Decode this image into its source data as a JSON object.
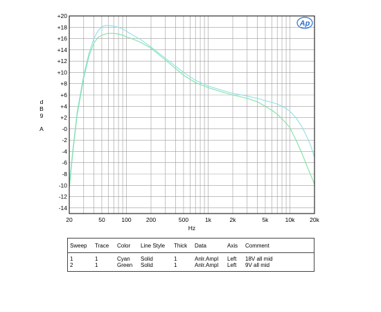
{
  "chart_data": {
    "type": "line",
    "xlabel": "Hz",
    "ylabel_lines": [
      "d",
      "B",
      "9",
      "A"
    ],
    "x_scale": "log",
    "xlim": [
      20,
      20000
    ],
    "ylim": [
      -15,
      20
    ],
    "grid": true,
    "x_ticks": [
      {
        "v": 20,
        "label": "20"
      },
      {
        "v": 50,
        "label": "50"
      },
      {
        "v": 100,
        "label": "100"
      },
      {
        "v": 200,
        "label": "200"
      },
      {
        "v": 500,
        "label": "500"
      },
      {
        "v": 1000,
        "label": "1k"
      },
      {
        "v": 2000,
        "label": "2k"
      },
      {
        "v": 5000,
        "label": "5k"
      },
      {
        "v": 10000,
        "label": "10k"
      },
      {
        "v": 20000,
        "label": "20k"
      }
    ],
    "y_ticks": [
      {
        "v": 20,
        "label": "+20"
      },
      {
        "v": 18,
        "label": "+18"
      },
      {
        "v": 16,
        "label": "+16"
      },
      {
        "v": 14,
        "label": "+14"
      },
      {
        "v": 12,
        "label": "+12"
      },
      {
        "v": 10,
        "label": "+10"
      },
      {
        "v": 8,
        "label": "+8"
      },
      {
        "v": 6,
        "label": "+6"
      },
      {
        "v": 4,
        "label": "+4"
      },
      {
        "v": 2,
        "label": "+2"
      },
      {
        "v": 0,
        "label": "-0"
      },
      {
        "v": -2,
        "label": "-2"
      },
      {
        "v": -4,
        "label": "-4"
      },
      {
        "v": -6,
        "label": "-6"
      },
      {
        "v": -8,
        "label": "-8"
      },
      {
        "v": -10,
        "label": "-10"
      },
      {
        "v": -12,
        "label": "-12"
      },
      {
        "v": -14,
        "label": "-14"
      }
    ],
    "series": [
      {
        "color": "#8fdfe8",
        "x": [
          20,
          22,
          25,
          30,
          35,
          40,
          45,
          50,
          55,
          60,
          70,
          80,
          90,
          100,
          120,
          150,
          200,
          300,
          500,
          700,
          1000,
          1500,
          2000,
          3000,
          4000,
          5000,
          6000,
          7000,
          8000,
          9000,
          10000,
          12000,
          14000,
          16000,
          18000,
          20000
        ],
        "y": [
          -10.0,
          -4.0,
          3.0,
          9.5,
          13.5,
          16.0,
          17.4,
          18.1,
          18.3,
          18.3,
          18.2,
          18.0,
          17.7,
          17.3,
          16.6,
          15.8,
          14.5,
          12.5,
          10.0,
          8.6,
          7.6,
          6.8,
          6.3,
          5.8,
          5.4,
          5.0,
          4.7,
          4.4,
          4.0,
          3.6,
          3.1,
          1.9,
          0.4,
          -1.3,
          -3.0,
          -5.0
        ]
      },
      {
        "color": "#7ee3a3",
        "x": [
          20,
          22,
          25,
          30,
          35,
          40,
          45,
          50,
          55,
          60,
          70,
          80,
          90,
          100,
          120,
          150,
          200,
          300,
          500,
          700,
          1000,
          1500,
          2000,
          3000,
          4000,
          5000,
          6000,
          7000,
          8000,
          9000,
          10000,
          12000,
          14000,
          16000,
          18000,
          20000
        ],
        "y": [
          -10.5,
          -4.5,
          2.5,
          9.0,
          13.0,
          15.2,
          16.2,
          16.6,
          16.8,
          16.9,
          16.9,
          16.8,
          16.6,
          16.3,
          15.9,
          15.3,
          14.3,
          12.2,
          9.5,
          8.2,
          7.3,
          6.5,
          6.0,
          5.4,
          4.8,
          4.0,
          3.3,
          2.6,
          1.8,
          1.0,
          0.2,
          -2.1,
          -4.3,
          -6.4,
          -8.2,
          -9.8
        ]
      }
    ]
  },
  "legend_table": {
    "headers": [
      "Sweep",
      "Trace",
      "Color",
      "Line Style",
      "Thick",
      "Data",
      "Axis",
      "Comment"
    ],
    "rows": [
      [
        "1",
        "1",
        "Cyan",
        "Solid",
        "1",
        "Anlr.Ampl",
        "Left",
        "18V all mid"
      ],
      [
        "2",
        "1",
        "Green",
        "Solid",
        "1",
        "Anlr.Ampl",
        "Left",
        "9V all mid"
      ]
    ]
  },
  "logo": {
    "text": "Ap",
    "color": "#2f6fd0"
  }
}
